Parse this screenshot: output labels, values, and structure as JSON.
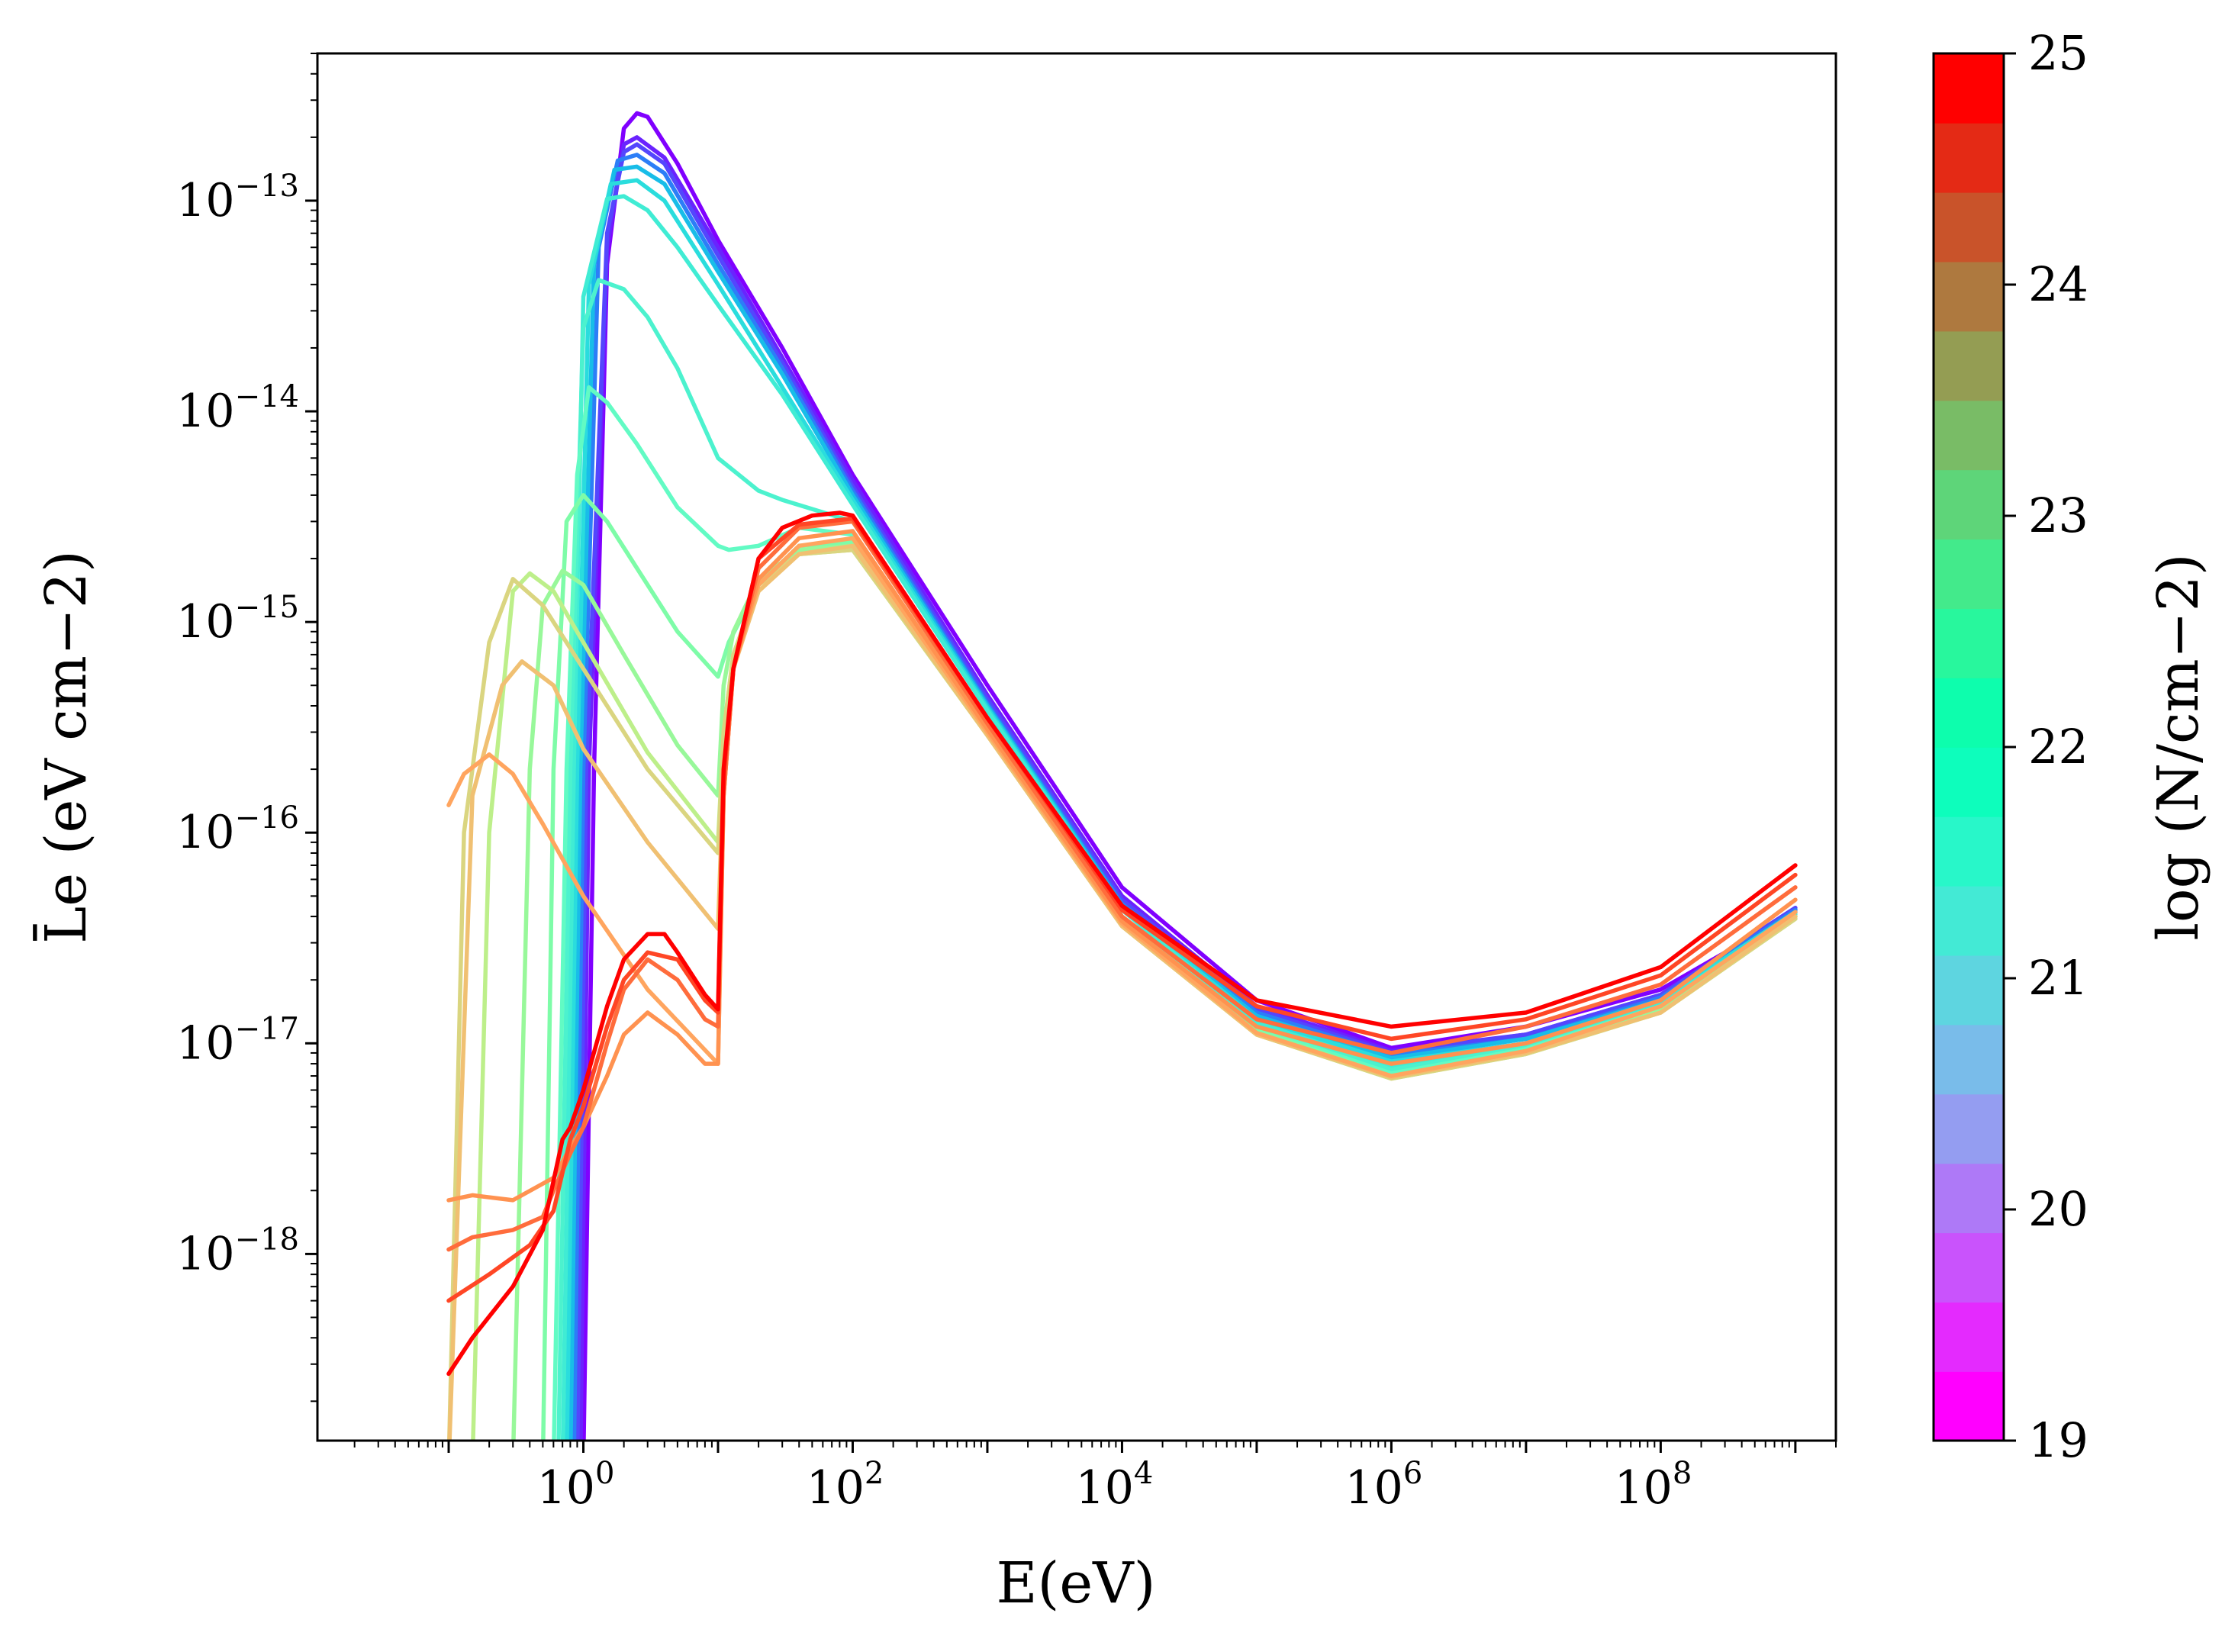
{
  "chart_data": {
    "type": "line",
    "title": "",
    "xlabel": "E(eV)",
    "ylabel": "L̄e (eV cm−2)",
    "xscale": "log",
    "yscale": "log",
    "xlim": [
      0.0106,
      2000000000.0
    ],
    "ylim": [
      1.3e-19,
      5e-13
    ],
    "x_ticks": [
      {
        "value": 1,
        "base": "10",
        "exp": "0"
      },
      {
        "value": 100,
        "base": "10",
        "exp": "2"
      },
      {
        "value": 10000,
        "base": "10",
        "exp": "4"
      },
      {
        "value": 1000000,
        "base": "10",
        "exp": "6"
      },
      {
        "value": 100000000,
        "base": "10",
        "exp": "8"
      }
    ],
    "y_ticks": [
      {
        "value": 1e-13,
        "base": "10",
        "exp": "−13"
      },
      {
        "value": 1e-14,
        "base": "10",
        "exp": "−14"
      },
      {
        "value": 1e-15,
        "base": "10",
        "exp": "−15"
      },
      {
        "value": 1e-16,
        "base": "10",
        "exp": "−16"
      },
      {
        "value": 1e-17,
        "base": "10",
        "exp": "−17"
      },
      {
        "value": 1e-18,
        "base": "10",
        "exp": "−18"
      }
    ],
    "colorbar": {
      "label": "log (N/cm−2)",
      "min": 19,
      "max": 25,
      "ticks": [
        "19",
        "20",
        "21",
        "22",
        "23",
        "24",
        "25"
      ],
      "colormap": "rainbow",
      "levels": 20
    },
    "series": [
      {
        "name": "log N = 19.0",
        "color": "#8000ff",
        "x": [
          1,
          1.2,
          1.5,
          2,
          2.5,
          3,
          5,
          10,
          30,
          100,
          1000,
          10000,
          100000,
          1000000,
          10000000,
          100000000,
          1000000000
        ],
        "y": [
          1e-19,
          2e-16,
          5e-14,
          2.2e-13,
          2.6e-13,
          2.5e-13,
          1.5e-13,
          6.5e-14,
          2e-14,
          5e-15,
          5e-16,
          5.5e-17,
          1.6e-17,
          9.5e-18,
          1.2e-17,
          1.8e-17,
          4.2e-17
        ]
      },
      {
        "name": "log N = 19.3",
        "color": "#6a23fe",
        "x": [
          0.95,
          1.1,
          1.5,
          2,
          2.5,
          4,
          10,
          30,
          100,
          1000,
          10000,
          100000,
          1000000,
          10000000,
          100000000,
          1000000000
        ],
        "y": [
          1e-19,
          2e-16,
          6e-14,
          1.85e-13,
          2e-13,
          1.6e-13,
          6e-14,
          1.8e-14,
          4.7e-15,
          4.5e-16,
          5e-17,
          1.5e-17,
          9.2e-18,
          1.1e-17,
          1.7e-17,
          4.3e-17
        ]
      },
      {
        "name": "log N = 19.6",
        "color": "#5446fd",
        "x": [
          0.9,
          1.05,
          1.5,
          2,
          2.5,
          4,
          10,
          30,
          100,
          1000,
          10000,
          100000,
          1000000,
          10000000,
          100000000,
          1000000000
        ],
        "y": [
          1e-19,
          2e-16,
          7e-14,
          1.7e-13,
          1.85e-13,
          1.5e-13,
          5.5e-14,
          1.7e-14,
          4.4e-15,
          4.3e-16,
          4.8e-17,
          1.45e-17,
          9e-18,
          1.1e-17,
          1.7e-17,
          4.4e-17
        ]
      },
      {
        "name": "log N = 20.0",
        "color": "#2c7ef7",
        "x": [
          0.85,
          1,
          1.3,
          1.8,
          2.5,
          4,
          10,
          30,
          100,
          1000,
          10000,
          100000,
          1000000,
          10000000,
          100000000,
          1000000000
        ],
        "y": [
          1e-19,
          2e-16,
          6e-14,
          1.55e-13,
          1.65e-13,
          1.35e-13,
          5e-14,
          1.6e-14,
          4.2e-15,
          4.1e-16,
          4.6e-17,
          1.4e-17,
          8.8e-18,
          1.05e-17,
          1.65e-17,
          4.3e-17
        ]
      },
      {
        "name": "log N = 20.4",
        "color": "#18bde8",
        "x": [
          0.8,
          0.95,
          1.2,
          1.7,
          2.5,
          4,
          10,
          30,
          100,
          1000,
          10000,
          100000,
          1000000,
          10000000,
          100000000,
          1000000000
        ],
        "y": [
          1e-19,
          2e-16,
          5e-14,
          1.4e-13,
          1.45e-13,
          1.2e-13,
          4.6e-14,
          1.5e-14,
          4e-15,
          4e-16,
          4.5e-17,
          1.35e-17,
          8.5e-18,
          1.05e-17,
          1.6e-17,
          4.2e-17
        ]
      },
      {
        "name": "log N = 20.8",
        "color": "#2adddd",
        "x": [
          0.75,
          0.9,
          1.1,
          1.6,
          2.5,
          4,
          10,
          30,
          100,
          1000,
          10000,
          100000,
          1000000,
          10000000,
          100000000,
          1000000000
        ],
        "y": [
          1e-19,
          2e-16,
          4e-14,
          1.2e-13,
          1.25e-13,
          1e-13,
          4e-14,
          1.3e-14,
          3.8e-15,
          3.9e-16,
          4.4e-17,
          1.3e-17,
          8.2e-18,
          1e-17,
          1.6e-17,
          4.2e-17
        ]
      },
      {
        "name": "log N = 21.1",
        "color": "#40ecd4",
        "x": [
          0.7,
          0.85,
          1,
          1.5,
          2,
          3,
          5,
          10,
          30,
          100,
          1000,
          10000,
          100000,
          1000000,
          10000000,
          100000000,
          1000000000
        ],
        "y": [
          1e-19,
          2e-16,
          3.5e-14,
          1.02e-13,
          1.05e-13,
          9e-14,
          6e-14,
          3.2e-14,
          1.2e-14,
          3.6e-15,
          3.8e-16,
          4.3e-17,
          1.25e-17,
          7.8e-18,
          9.8e-18,
          1.55e-17,
          4.1e-17
        ]
      },
      {
        "name": "log N = 21.4",
        "color": "#4cf2ce",
        "x": [
          0.65,
          0.8,
          1,
          1.3,
          2,
          3,
          5,
          10,
          20,
          30,
          100,
          1000,
          10000,
          100000,
          1000000,
          10000000,
          100000000,
          1000000000
        ],
        "y": [
          1e-19,
          2e-16,
          2.5e-14,
          4.2e-14,
          3.8e-14,
          2.8e-14,
          1.6e-14,
          6e-15,
          4.2e-15,
          3.8e-15,
          3e-15,
          3.4e-16,
          4e-17,
          1.2e-17,
          7.5e-18,
          9.6e-18,
          1.5e-17,
          4e-17
        ]
      },
      {
        "name": "log N = 21.7",
        "color": "#62fbc4",
        "x": [
          0.6,
          0.75,
          0.9,
          1.1,
          1.5,
          2.5,
          5,
          10,
          12,
          20,
          40,
          100,
          1000,
          10000,
          100000,
          1000000,
          10000000,
          100000000,
          1000000000
        ],
        "y": [
          1e-19,
          2e-16,
          5e-15,
          1.3e-14,
          1.1e-14,
          7e-15,
          3.5e-15,
          2.3e-15,
          2.2e-15,
          2.3e-15,
          2.8e-15,
          2.6e-15,
          3.2e-16,
          3.9e-17,
          1.18e-17,
          7.2e-18,
          9.4e-18,
          1.5e-17,
          4e-17
        ]
      },
      {
        "name": "log N = 22.0",
        "color": "#7efca8",
        "x": [
          0.5,
          0.6,
          0.75,
          1,
          1.5,
          3,
          5,
          10,
          12,
          20,
          40,
          100,
          1000,
          10000,
          100000,
          1000000,
          10000000,
          100000000,
          1000000000
        ],
        "y": [
          1e-19,
          2e-16,
          3e-15,
          4e-15,
          3e-15,
          1.5e-15,
          9e-16,
          5.5e-16,
          8e-16,
          1.5e-15,
          2.3e-15,
          2.4e-15,
          3.1e-16,
          3.8e-17,
          1.15e-17,
          7e-18,
          9.2e-18,
          1.45e-17,
          4e-17
        ]
      },
      {
        "name": "log N = 22.3",
        "color": "#98f89a",
        "x": [
          0.3,
          0.4,
          0.5,
          0.7,
          1,
          2,
          5,
          10,
          11,
          13,
          20,
          40,
          100,
          1000,
          10000,
          100000,
          1000000,
          10000000,
          100000000,
          1000000000
        ],
        "y": [
          1e-19,
          2e-16,
          1.2e-15,
          1.75e-15,
          1.5e-15,
          7e-16,
          2.6e-16,
          1.5e-16,
          5e-16,
          9e-16,
          1.6e-15,
          2.2e-15,
          2.3e-15,
          3e-16,
          3.7e-17,
          1.12e-17,
          6.9e-18,
          9e-18,
          1.45e-17,
          4e-17
        ]
      },
      {
        "name": "log N = 22.7",
        "color": "#bdef8a",
        "x": [
          0.15,
          0.2,
          0.3,
          0.4,
          0.6,
          1,
          3,
          10,
          11,
          13,
          20,
          40,
          100,
          1000,
          10000,
          100000,
          1000000,
          10000000,
          100000000,
          1000000000
        ],
        "y": [
          1e-19,
          1e-16,
          1.4e-15,
          1.7e-15,
          1.4e-15,
          8e-16,
          2.4e-16,
          9e-17,
          3e-16,
          7e-16,
          1.5e-15,
          2.1e-15,
          2.2e-15,
          2.9e-16,
          3.6e-17,
          1.1e-17,
          6.8e-18,
          8.9e-18,
          1.4e-17,
          3.9e-17
        ]
      },
      {
        "name": "log N = 23.0",
        "color": "#dad580",
        "x": [
          0.1,
          0.13,
          0.2,
          0.3,
          0.5,
          1,
          3,
          10,
          11,
          13,
          20,
          40,
          100,
          1000,
          10000,
          100000,
          1000000,
          10000000,
          100000000,
          1000000000
        ],
        "y": [
          1e-19,
          1e-16,
          8e-16,
          1.6e-15,
          1.2e-15,
          6e-16,
          2e-16,
          8e-17,
          3e-16,
          7e-16,
          1.5e-15,
          2.1e-15,
          2.2e-15,
          2.9e-16,
          3.6e-17,
          1.1e-17,
          6.8e-18,
          8.9e-18,
          1.4e-17,
          3.9e-17
        ]
      },
      {
        "name": "log N = 23.3",
        "color": "#f0c072",
        "x": [
          0.1,
          0.15,
          0.25,
          0.35,
          0.6,
          1,
          3,
          10,
          11,
          13,
          20,
          40,
          100,
          1000,
          10000,
          100000,
          1000000,
          10000000,
          100000000,
          1000000000
        ],
        "y": [
          1e-19,
          1.5e-16,
          5e-16,
          6.5e-16,
          5e-16,
          2.5e-16,
          9e-17,
          3.5e-17,
          2e-16,
          6e-16,
          1.4e-15,
          2.1e-15,
          2.3e-15,
          2.9e-16,
          3.6e-17,
          1.1e-17,
          6.9e-18,
          9e-18,
          1.4e-17,
          4e-17
        ]
      },
      {
        "name": "log N = 23.6",
        "color": "#ffa55f",
        "x": [
          0.1,
          0.13,
          0.2,
          0.3,
          0.5,
          1,
          3,
          10,
          11,
          13,
          20,
          40,
          100,
          1000,
          10000,
          100000,
          1000000,
          10000000,
          100000000,
          1000000000
        ],
        "y": [
          1.35e-16,
          1.9e-16,
          2.35e-16,
          1.9e-16,
          1.1e-16,
          5e-17,
          1.8e-17,
          8e-18,
          1.5e-16,
          6e-16,
          1.5e-15,
          2.3e-15,
          2.5e-15,
          3e-16,
          3.7e-17,
          1.12e-17,
          7e-18,
          9.2e-18,
          1.5e-17,
          4.2e-17
        ]
      },
      {
        "name": "log N = 24.0",
        "color": "#ff9250",
        "x": [
          0.1,
          0.15,
          0.3,
          0.6,
          0.8,
          1,
          1.5,
          2,
          3,
          5,
          8,
          10,
          11,
          13,
          20,
          40,
          100,
          1000,
          10000,
          100000,
          1000000,
          10000000,
          100000000,
          1000000000
        ],
        "y": [
          1.8e-18,
          1.9e-18,
          1.8e-18,
          2.3e-18,
          3.2e-18,
          4e-18,
          7e-18,
          1.1e-17,
          1.4e-17,
          1.1e-17,
          8e-18,
          8e-18,
          1.5e-16,
          6e-16,
          1.6e-15,
          2.5e-15,
          2.7e-15,
          3.1e-16,
          3.8e-17,
          1.2e-17,
          8e-18,
          1e-17,
          1.6e-17,
          4.8e-17
        ]
      },
      {
        "name": "log N = 24.3",
        "color": "#ff6c3c",
        "x": [
          0.1,
          0.15,
          0.3,
          0.5,
          0.6,
          0.8,
          1,
          1.5,
          2,
          3,
          5,
          8,
          10,
          11,
          13,
          20,
          40,
          100,
          1000,
          10000,
          100000,
          1000000,
          10000000,
          100000000,
          1000000000
        ],
        "y": [
          1.05e-18,
          1.2e-18,
          1.3e-18,
          1.5e-18,
          2e-18,
          3e-18,
          4e-18,
          1e-17,
          1.8e-17,
          2.5e-17,
          2e-17,
          1.3e-17,
          1.2e-17,
          1.5e-16,
          6e-16,
          1.8e-15,
          2.8e-15,
          3e-15,
          3.3e-16,
          4e-17,
          1.3e-17,
          9e-18,
          1.2e-17,
          1.9e-17,
          5.5e-17
        ]
      },
      {
        "name": "log N = 24.6",
        "color": "#ff4625",
        "x": [
          0.1,
          0.2,
          0.4,
          0.6,
          0.8,
          1,
          1.5,
          2,
          3,
          5,
          8,
          10,
          11,
          13,
          20,
          40,
          100,
          1000,
          10000,
          100000,
          1000000,
          10000000,
          100000000,
          1000000000
        ],
        "y": [
          6e-19,
          8e-19,
          1.1e-18,
          1.6e-18,
          3.5e-18,
          5e-18,
          1.2e-17,
          2e-17,
          2.7e-17,
          2.5e-17,
          1.6e-17,
          1.4e-17,
          1.8e-16,
          6e-16,
          2e-15,
          2.9e-15,
          3.1e-15,
          3.5e-16,
          4.3e-17,
          1.5e-17,
          1.05e-17,
          1.3e-17,
          2.1e-17,
          6.3e-17
        ]
      },
      {
        "name": "log N = 25.0",
        "color": "#ff0000",
        "x": [
          0.1,
          0.15,
          0.3,
          0.5,
          0.7,
          0.8,
          1,
          1.5,
          2,
          3,
          4,
          5,
          8,
          10,
          11,
          13,
          20,
          30,
          50,
          80,
          100,
          1000,
          10000,
          100000,
          1000000,
          10000000,
          100000000,
          1000000000
        ],
        "y": [
          2.7e-19,
          4e-19,
          7e-19,
          1.3e-18,
          3.5e-18,
          4e-18,
          6e-18,
          1.5e-17,
          2.5e-17,
          3.3e-17,
          3.3e-17,
          2.7e-17,
          1.7e-17,
          1.45e-17,
          2e-16,
          6e-16,
          2e-15,
          2.8e-15,
          3.2e-15,
          3.3e-15,
          3.2e-15,
          3.5e-16,
          4.5e-17,
          1.6e-17,
          1.2e-17,
          1.4e-17,
          2.3e-17,
          7e-17
        ]
      }
    ]
  }
}
